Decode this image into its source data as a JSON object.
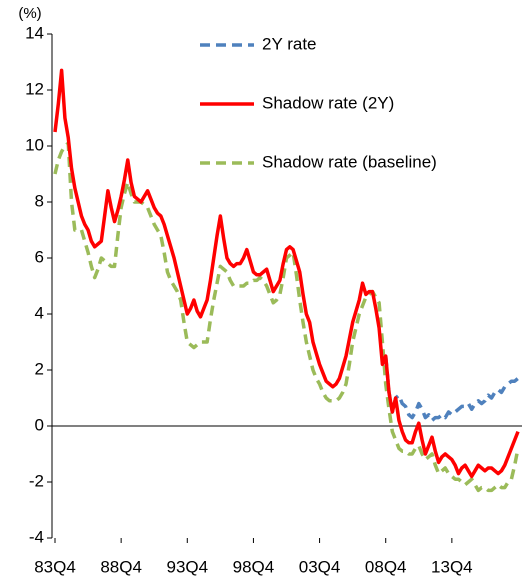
{
  "chart_data": {
    "type": "line",
    "ylabel": "(%)",
    "categories": [
      "83Q4",
      null,
      null,
      null,
      null,
      null,
      null,
      null,
      null,
      null,
      null,
      null,
      null,
      null,
      null,
      null,
      null,
      null,
      null,
      null,
      "88Q4",
      null,
      null,
      null,
      null,
      null,
      null,
      null,
      null,
      null,
      null,
      null,
      null,
      null,
      null,
      null,
      null,
      null,
      null,
      null,
      "93Q4",
      null,
      null,
      null,
      null,
      null,
      null,
      null,
      null,
      null,
      null,
      null,
      null,
      null,
      null,
      null,
      null,
      null,
      null,
      null,
      "98Q4",
      null,
      null,
      null,
      null,
      null,
      null,
      null,
      null,
      null,
      null,
      null,
      null,
      null,
      null,
      null,
      null,
      null,
      null,
      null,
      "03Q4",
      null,
      null,
      null,
      null,
      null,
      null,
      null,
      null,
      null,
      null,
      null,
      null,
      null,
      null,
      null,
      null,
      null,
      null,
      null,
      "08Q4",
      null,
      null,
      null,
      null,
      null,
      null,
      null,
      null,
      null,
      null,
      null,
      null,
      null,
      null,
      null,
      null,
      null,
      null,
      null,
      "13Q4",
      null,
      null,
      null,
      null,
      null,
      null,
      null,
      null,
      null,
      null,
      null,
      null,
      null,
      null,
      null,
      null,
      null,
      null,
      null,
      null
    ],
    "series": [
      {
        "name": "2Y rate",
        "color": "#4f81bd",
        "dashed": true,
        "values": [
          null,
          null,
          null,
          null,
          null,
          null,
          null,
          null,
          null,
          null,
          null,
          null,
          null,
          null,
          null,
          null,
          null,
          null,
          null,
          null,
          null,
          null,
          null,
          null,
          null,
          null,
          null,
          null,
          null,
          null,
          null,
          null,
          null,
          null,
          null,
          null,
          null,
          null,
          null,
          null,
          null,
          null,
          null,
          null,
          null,
          null,
          null,
          null,
          null,
          null,
          null,
          null,
          null,
          null,
          null,
          null,
          null,
          null,
          null,
          null,
          null,
          null,
          null,
          null,
          null,
          null,
          null,
          null,
          null,
          null,
          null,
          null,
          null,
          null,
          null,
          null,
          null,
          null,
          null,
          null,
          null,
          null,
          null,
          null,
          null,
          null,
          null,
          null,
          null,
          null,
          null,
          null,
          null,
          null,
          null,
          null,
          null,
          null,
          null,
          null,
          2.5,
          1.2,
          0.5,
          1,
          1.1,
          0.8,
          0.7,
          0.4,
          0.3,
          0.5,
          0.8,
          0.6,
          0.3,
          0.4,
          0.2,
          0.3,
          0.3,
          0.4,
          0.3,
          0.5,
          0.4,
          0.5,
          0.6,
          0.7,
          0.7,
          0.8,
          0.6,
          0.8,
          0.9,
          0.8,
          0.9,
          1.1,
          1.0,
          1.2,
          1.3,
          1.2,
          1.4,
          1.5,
          1.6,
          1.6,
          1.7
        ]
      },
      {
        "name": "Shadow rate (2Y)",
        "color": "#ff0000",
        "dashed": false,
        "values": [
          10.5,
          11.5,
          12.7,
          11,
          10.3,
          9.2,
          8.5,
          8,
          7.5,
          7.2,
          7,
          6.6,
          6.4,
          6.5,
          6.6,
          7.5,
          8.4,
          7.8,
          7.3,
          7.7,
          8.2,
          8.8,
          9.5,
          8.7,
          8.2,
          8.1,
          8,
          8.2,
          8.4,
          8.1,
          7.8,
          7.6,
          7.5,
          7.2,
          6.8,
          6.4,
          6,
          5.5,
          5,
          4.5,
          4,
          4.2,
          4.5,
          4.1,
          3.9,
          4.2,
          4.5,
          5.2,
          6,
          6.8,
          7.5,
          6.7,
          6,
          5.8,
          5.7,
          5.8,
          5.8,
          6,
          6.3,
          5.9,
          5.5,
          5.4,
          5.4,
          5.5,
          5.6,
          5.2,
          4.8,
          5,
          5.2,
          5.8,
          6.3,
          6.4,
          6.3,
          5.9,
          5.5,
          4.7,
          4,
          3.7,
          3,
          2.6,
          2.2,
          1.9,
          1.6,
          1.5,
          1.4,
          1.5,
          1.7,
          2.1,
          2.5,
          3.1,
          3.7,
          4.1,
          4.5,
          5.1,
          4.7,
          4.8,
          4.8,
          4.2,
          3.5,
          2.2,
          2.5,
          1.2,
          0.5,
          1,
          0.2,
          -0.2,
          -0.5,
          -0.6,
          -0.6,
          -0.2,
          0.1,
          -0.5,
          -1,
          -0.7,
          -0.4,
          -0.9,
          -1.3,
          -1.1,
          -1,
          -1.1,
          -1.2,
          -1.4,
          -1.7,
          -1.5,
          -1.4,
          -1.6,
          -1.8,
          -1.6,
          -1.4,
          -1.5,
          -1.6,
          -1.5,
          -1.5,
          -1.6,
          -1.7,
          -1.6,
          -1.4,
          -1.1,
          -0.8,
          -0.5,
          -0.2
        ]
      },
      {
        "name": "Shadow rate (baseline)",
        "color": "#9bbb59",
        "dashed": true,
        "values": [
          9,
          9.5,
          9.8,
          10,
          10.1,
          8,
          7,
          7,
          7,
          6.6,
          6.2,
          5.7,
          5.3,
          5.6,
          6,
          5.9,
          5.8,
          5.7,
          5.7,
          6.8,
          7.8,
          8.3,
          8.7,
          8.3,
          8,
          8,
          8,
          7.9,
          7.8,
          7.5,
          7.2,
          7,
          6.8,
          6.2,
          5.5,
          5.2,
          5,
          4.8,
          4.5,
          3.7,
          3,
          2.9,
          2.8,
          2.9,
          3,
          3,
          3,
          3.8,
          4.5,
          5.1,
          5.7,
          5.6,
          5.5,
          5.2,
          5,
          5,
          5,
          5,
          5.1,
          5.1,
          5.2,
          5.2,
          5.3,
          5.2,
          5,
          4.7,
          4.4,
          4.5,
          4.7,
          5.3,
          6,
          6.1,
          6.2,
          5.4,
          4.5,
          3.7,
          3,
          2.5,
          2,
          1.7,
          1.5,
          1.2,
          1,
          0.9,
          0.9,
          0.9,
          1,
          1.2,
          1.5,
          2.2,
          3,
          3.5,
          4,
          4.3,
          4.6,
          4.7,
          4.8,
          4.6,
          4.4,
          3,
          1.5,
          0.6,
          -0.2,
          -0.5,
          -0.8,
          -0.9,
          -0.9,
          -1,
          -1,
          -0.8,
          -0.7,
          -1,
          -1.2,
          -1.1,
          -1,
          -1.4,
          -1.7,
          -1.6,
          -1.5,
          -1.7,
          -1.8,
          -1.9,
          -1.9,
          -2,
          -2.1,
          -2,
          -1.9,
          -2.1,
          -2.3,
          -2.2,
          -2.2,
          -2.3,
          -2.3,
          -2.2,
          -2.1,
          -2.2,
          -2.2,
          -2,
          -1.9,
          -1.4,
          -0.8
        ]
      }
    ],
    "ylim": [
      -4,
      14
    ],
    "yticks": [
      -4,
      -2,
      0,
      2,
      4,
      6,
      8,
      10,
      12,
      14
    ],
    "grid": false,
    "legend": "upper center"
  }
}
